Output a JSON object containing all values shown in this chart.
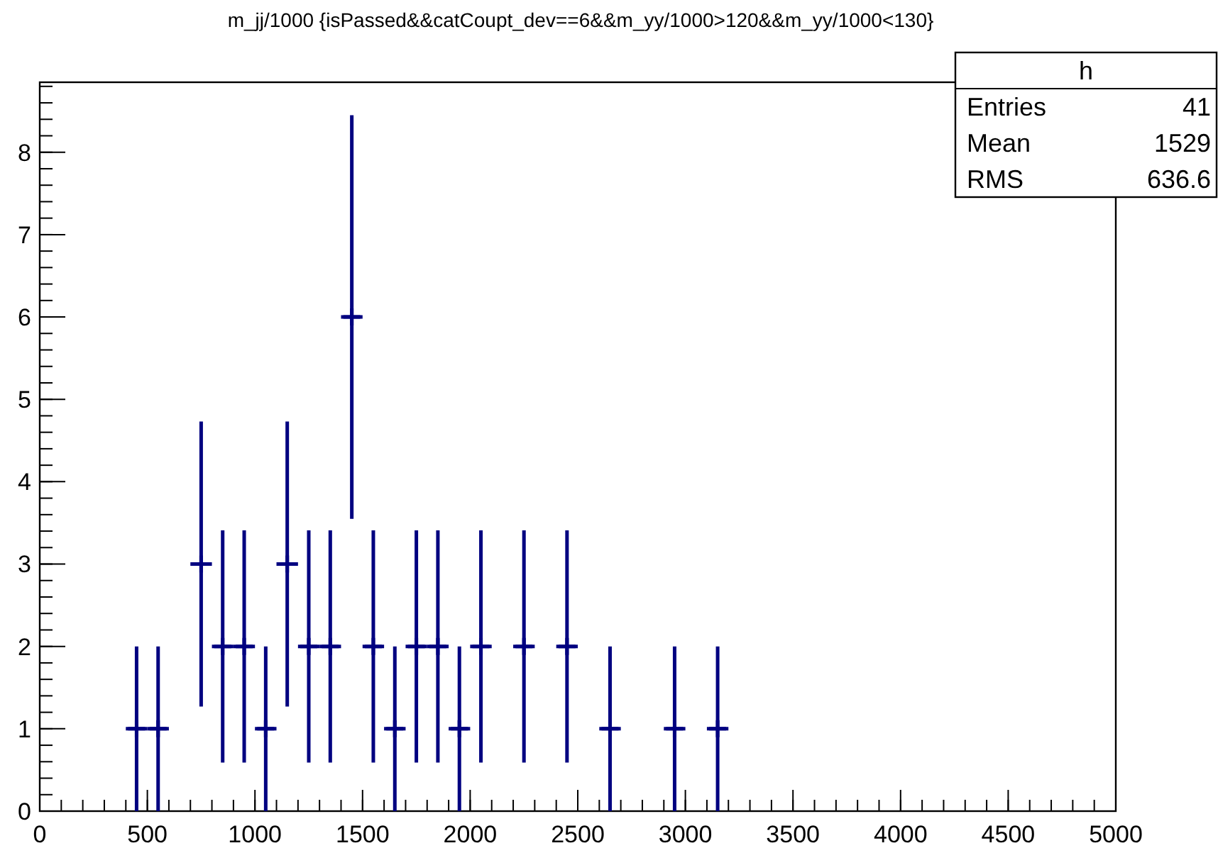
{
  "chart_data": {
    "type": "scatter",
    "title": "m_jj/1000 {isPassed&&catCoupt_dev==6&&m_yy/1000>120&&m_yy/1000<130}",
    "x": [
      450,
      550,
      750,
      850,
      950,
      1050,
      1150,
      1250,
      1350,
      1450,
      1550,
      1650,
      1750,
      1850,
      1950,
      2050,
      2250,
      2450,
      2650,
      2950,
      3150
    ],
    "values": [
      1,
      1,
      3,
      2,
      2,
      1,
      3,
      2,
      2,
      6,
      2,
      1,
      2,
      2,
      1,
      2,
      2,
      2,
      1,
      1,
      1
    ],
    "errors": [
      1,
      1,
      1.73,
      1.41,
      1.41,
      1,
      1.73,
      1.41,
      1.41,
      2.45,
      1.41,
      1,
      1.41,
      1.41,
      1,
      1.41,
      1.41,
      1.41,
      1,
      1,
      1
    ],
    "xerrors": [
      50,
      50,
      50,
      50,
      50,
      50,
      50,
      50,
      50,
      50,
      50,
      50,
      50,
      50,
      50,
      50,
      50,
      50,
      50,
      50,
      50
    ],
    "color": "#000080",
    "xlim": [
      0,
      5000
    ],
    "xticks": [
      0,
      500,
      1000,
      1500,
      2000,
      2500,
      3000,
      3500,
      4000,
      4500,
      5000
    ],
    "ylim": [
      0,
      8.85
    ],
    "yticks": [
      0,
      1,
      2,
      3,
      4,
      5,
      6,
      7,
      8
    ],
    "marker": "cross",
    "annotations": [
      "h",
      "Entries",
      "41",
      "Mean",
      "1529",
      "RMS",
      "636.6"
    ]
  }
}
